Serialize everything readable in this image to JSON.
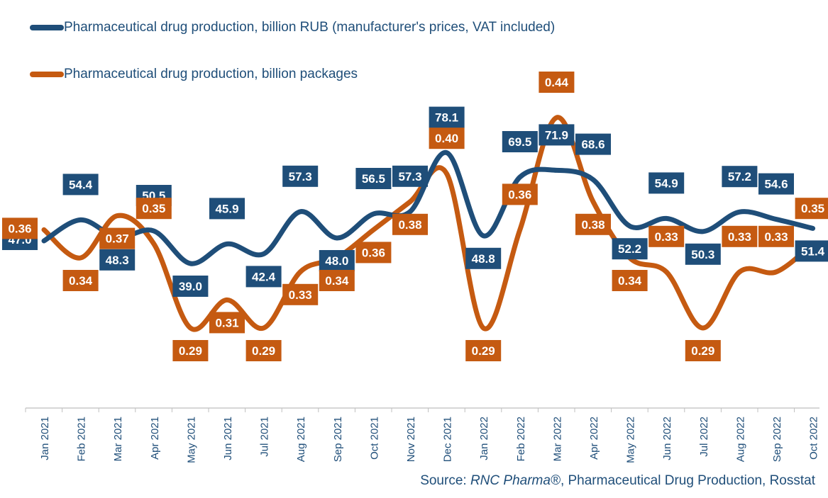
{
  "chart_data": {
    "type": "line",
    "categories": [
      "Jan 2021",
      "Feb 2021",
      "Mar 2021",
      "Apr 2021",
      "May 2021",
      "Jun 2021",
      "Jul 2021",
      "Aug 2021",
      "Sep 2021",
      "Oct 2021",
      "Nov 2021",
      "Dec 2021",
      "Jan 2022",
      "Feb 2022",
      "Mar 2022",
      "Apr 2022",
      "May 2022",
      "Jun 2022",
      "Jul 2022",
      "Aug 2022",
      "Sep 2022",
      "Oct 2022"
    ],
    "series": [
      {
        "name": "Pharmaceutical drug production, billion RUB (manufacturer's prices, VAT included)",
        "color": "#1f4e79",
        "values": [
          47.0,
          54.4,
          48.3,
          50.5,
          39.0,
          45.9,
          42.4,
          57.3,
          48.0,
          56.5,
          57.3,
          78.1,
          48.8,
          69.5,
          71.9,
          68.6,
          52.2,
          54.9,
          50.3,
          57.2,
          54.6,
          51.4
        ],
        "labels": [
          "47.0",
          "54.4",
          "48.3",
          "50.5",
          "39.0",
          "45.9",
          "42.4",
          "57.3",
          "48.0",
          "56.5",
          "57.3",
          "78.1",
          "48.8",
          "69.5",
          "71.9",
          "68.6",
          "52.2",
          "54.9",
          "50.3",
          "57.2",
          "54.6",
          "51.4"
        ]
      },
      {
        "name": "Pharmaceutical drug production, billion packages",
        "color": "#c55a11",
        "values": [
          0.36,
          0.34,
          0.37,
          0.35,
          0.29,
          0.31,
          0.29,
          0.33,
          0.34,
          0.36,
          0.38,
          0.4,
          0.29,
          0.36,
          0.44,
          0.38,
          0.34,
          0.33,
          0.29,
          0.33,
          0.33,
          0.35
        ],
        "labels": [
          "0.36",
          "0.34",
          "0.37",
          "0.35",
          "0.29",
          "0.31",
          "0.29",
          "0.33",
          "0.34",
          "0.36",
          "0.38",
          "0.40",
          "0.29",
          "0.36",
          "0.44",
          "0.38",
          "0.34",
          "0.33",
          "0.29",
          "0.33",
          "0.33",
          "0.35"
        ]
      }
    ],
    "source_prefix": "Source: ",
    "source_italic": "RNC Pharma®",
    "source_rest": ", Pharmaceutical Drug Production, Rosstat",
    "legend_position": "top-left",
    "grid": false
  }
}
